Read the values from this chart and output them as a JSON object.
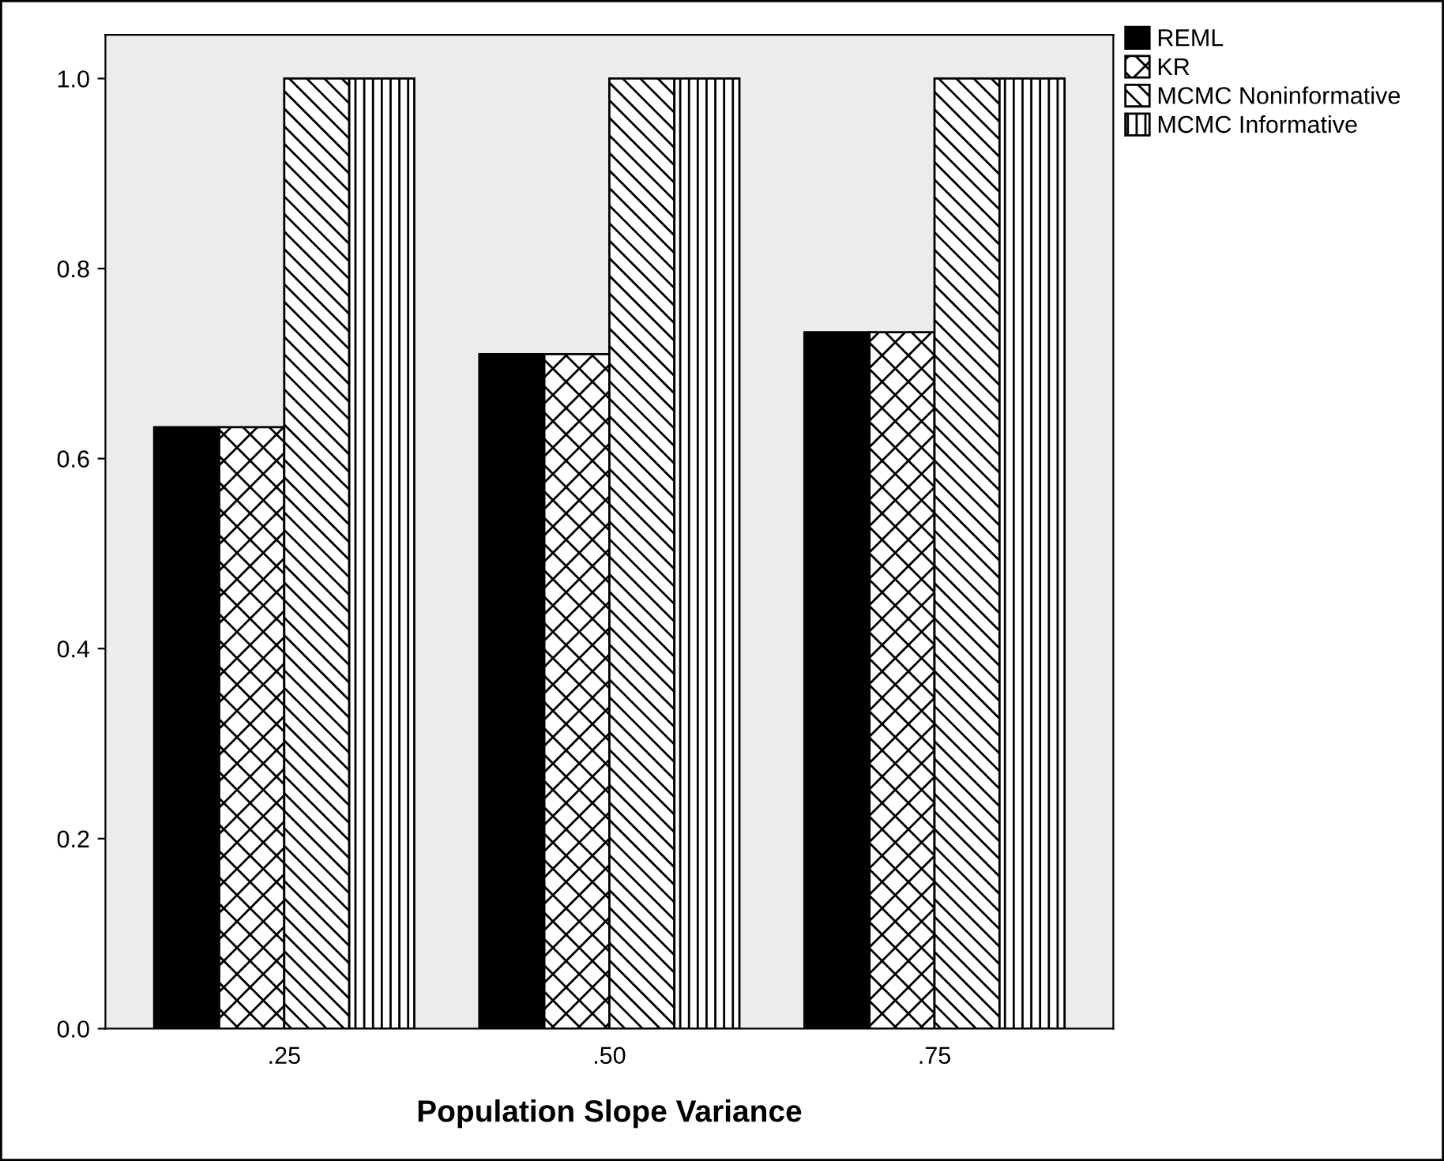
{
  "chart_data": {
    "type": "bar",
    "xlabel": "Population Slope Variance",
    "categories": [
      ".25",
      ".50",
      ".75"
    ],
    "series": [
      {
        "name": "REML",
        "color": "#000000",
        "values": [
          0.633,
          0.71,
          0.733
        ]
      },
      {
        "name": "KR",
        "color": "#000000",
        "values": [
          0.633,
          0.71,
          0.733
        ]
      },
      {
        "name": "MCMC Noninformative",
        "color": "#000000",
        "values": [
          1.0,
          1.0,
          1.0
        ]
      },
      {
        "name": "MCMC Informative",
        "color": "#000000",
        "values": [
          1.0,
          1.0,
          1.0
        ]
      }
    ],
    "ylim": [
      0,
      1.046
    ],
    "yticks": [
      {
        "value": 0,
        "label": "0.0"
      },
      {
        "value": 0.2,
        "label": "0.2"
      },
      {
        "value": 0.4,
        "label": "0.4"
      },
      {
        "value": 0.6,
        "label": "0.6"
      },
      {
        "value": 0.8,
        "label": "0.8"
      },
      {
        "value": 1.0,
        "label": "1.0"
      }
    ],
    "grid": false,
    "legend": "top right"
  }
}
